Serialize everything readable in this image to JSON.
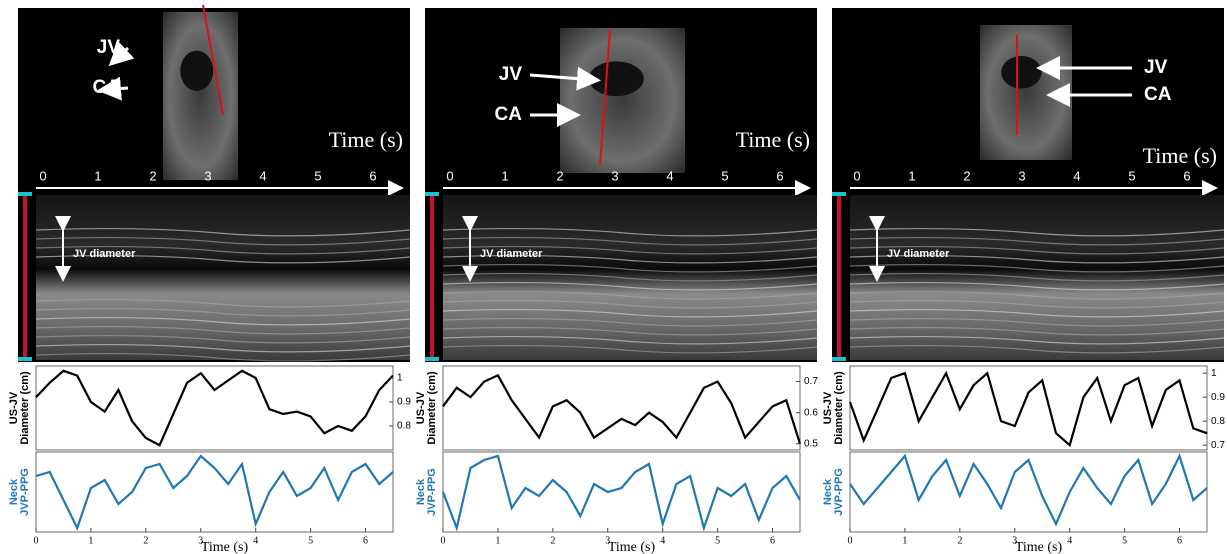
{
  "panels": [
    {
      "labels": [
        "JV",
        "CA"
      ],
      "time_label": "Time (s)",
      "time_ticks": [
        "0",
        "1",
        "2",
        "3",
        "4",
        "5",
        "6"
      ],
      "annotation": "JV diameter"
    },
    {
      "labels": [
        "JV",
        "CA"
      ],
      "time_label": "Time (s)",
      "time_ticks": [
        "0",
        "1",
        "2",
        "3",
        "4",
        "5",
        "6"
      ],
      "annotation": "JV diameter"
    },
    {
      "labels": [
        "JV",
        "CA"
      ],
      "time_label": "Time (s)",
      "time_ticks": [
        "0",
        "1",
        "2",
        "3",
        "4",
        "5",
        "6"
      ],
      "annotation": "JV diameter"
    }
  ],
  "chart_data": [
    {
      "type": "line",
      "ylabel": [
        "US-JV",
        "Diameter (cm)"
      ],
      "color": "#000000",
      "x": [
        0,
        0.25,
        0.5,
        0.75,
        1,
        1.25,
        1.5,
        1.75,
        2,
        2.25,
        2.5,
        2.75,
        3,
        3.25,
        3.5,
        3.75,
        4,
        4.25,
        4.5,
        4.75,
        5,
        5.25,
        5.5,
        5.75,
        6,
        6.25,
        6.5
      ],
      "values": [
        0.92,
        0.98,
        1.03,
        1.01,
        0.9,
        0.86,
        0.95,
        0.82,
        0.75,
        0.72,
        0.85,
        0.98,
        1.02,
        0.95,
        0.99,
        1.03,
        1.0,
        0.87,
        0.85,
        0.86,
        0.84,
        0.77,
        0.8,
        0.78,
        0.84,
        0.95,
        1.01
      ],
      "xlim": [
        0,
        6.5
      ],
      "ylim": [
        0.7,
        1.05
      ],
      "yticks": [
        0.8,
        0.9,
        1
      ]
    },
    {
      "type": "line",
      "ylabel": [
        "Neck",
        "JVP-PPG"
      ],
      "color": "#1f77b4",
      "x": [
        0,
        0.25,
        0.5,
        0.75,
        1,
        1.25,
        1.5,
        1.75,
        2,
        2.25,
        2.5,
        2.75,
        3,
        3.25,
        3.5,
        3.75,
        4,
        4.25,
        4.5,
        4.75,
        5,
        5.25,
        5.5,
        5.75,
        6,
        6.25,
        6.5
      ],
      "values": [
        0.7,
        0.75,
        0.4,
        0.05,
        0.55,
        0.65,
        0.35,
        0.5,
        0.8,
        0.85,
        0.55,
        0.7,
        0.95,
        0.8,
        0.6,
        0.85,
        0.1,
        0.5,
        0.75,
        0.45,
        0.55,
        0.8,
        0.4,
        0.75,
        0.85,
        0.6,
        0.75
      ],
      "xlim": [
        0,
        6.5
      ],
      "ylim": [
        0,
        1
      ],
      "xticks": [
        0,
        1,
        2,
        3,
        4,
        5,
        6
      ],
      "xlabel": "Time (s)"
    },
    {
      "type": "line",
      "ylabel": [
        "US-JV",
        "Diameter (cm)"
      ],
      "color": "#000000",
      "x": [
        0,
        0.25,
        0.5,
        0.75,
        1,
        1.25,
        1.5,
        1.75,
        2,
        2.25,
        2.5,
        2.75,
        3,
        3.25,
        3.5,
        3.75,
        4,
        4.25,
        4.5,
        4.75,
        5,
        5.25,
        5.5,
        5.75,
        6,
        6.25,
        6.5
      ],
      "values": [
        0.62,
        0.68,
        0.65,
        0.7,
        0.72,
        0.64,
        0.58,
        0.52,
        0.62,
        0.64,
        0.6,
        0.52,
        0.55,
        0.58,
        0.56,
        0.6,
        0.57,
        0.52,
        0.6,
        0.68,
        0.7,
        0.63,
        0.52,
        0.57,
        0.62,
        0.64,
        0.5
      ],
      "xlim": [
        0,
        6.5
      ],
      "ylim": [
        0.48,
        0.75
      ],
      "yticks": [
        0.5,
        0.6,
        0.7
      ]
    },
    {
      "type": "line",
      "ylabel": [
        "Neck",
        "JVP-PPG"
      ],
      "color": "#1f77b4",
      "x": [
        0,
        0.25,
        0.5,
        0.75,
        1,
        1.25,
        1.5,
        1.75,
        2,
        2.25,
        2.5,
        2.75,
        3,
        3.25,
        3.5,
        3.75,
        4,
        4.25,
        4.5,
        4.75,
        5,
        5.25,
        5.5,
        5.75,
        6,
        6.25,
        6.5
      ],
      "values": [
        0.5,
        0.05,
        0.8,
        0.9,
        0.95,
        0.3,
        0.55,
        0.45,
        0.65,
        0.5,
        0.2,
        0.6,
        0.5,
        0.55,
        0.75,
        0.85,
        0.1,
        0.6,
        0.7,
        0.05,
        0.55,
        0.45,
        0.6,
        0.15,
        0.55,
        0.7,
        0.4
      ],
      "xlim": [
        0,
        6.5
      ],
      "ylim": [
        0,
        1
      ],
      "xticks": [
        0,
        1,
        2,
        3,
        4,
        5,
        6
      ],
      "xlabel": "Time (s)"
    },
    {
      "type": "line",
      "ylabel": [
        "US-JV",
        "Diameter (cm)"
      ],
      "color": "#000000",
      "x": [
        0,
        0.25,
        0.5,
        0.75,
        1,
        1.25,
        1.5,
        1.75,
        2,
        2.25,
        2.5,
        2.75,
        3,
        3.25,
        3.5,
        3.75,
        4,
        4.25,
        4.5,
        4.75,
        5,
        5.25,
        5.5,
        5.75,
        6,
        6.25,
        6.5
      ],
      "values": [
        0.88,
        0.72,
        0.85,
        0.98,
        1.0,
        0.8,
        0.9,
        1.0,
        0.85,
        0.95,
        1.0,
        0.8,
        0.78,
        0.92,
        0.97,
        0.75,
        0.7,
        0.9,
        0.98,
        0.8,
        0.95,
        0.98,
        0.78,
        0.93,
        0.97,
        0.77,
        0.75
      ],
      "xlim": [
        0,
        6.5
      ],
      "ylim": [
        0.68,
        1.03
      ],
      "yticks": [
        0.7,
        0.8,
        0.9,
        1
      ]
    },
    {
      "type": "line",
      "ylabel": [
        "Neck",
        "JVP-PPG"
      ],
      "color": "#1f77b4",
      "x": [
        0,
        0.25,
        0.5,
        0.75,
        1,
        1.25,
        1.5,
        1.75,
        2,
        2.25,
        2.5,
        2.75,
        3,
        3.25,
        3.5,
        3.75,
        4,
        4.25,
        4.5,
        4.75,
        5,
        5.25,
        5.5,
        5.75,
        6,
        6.25,
        6.5
      ],
      "values": [
        0.6,
        0.35,
        0.55,
        0.75,
        0.95,
        0.4,
        0.7,
        0.9,
        0.45,
        0.85,
        0.6,
        0.3,
        0.75,
        0.9,
        0.45,
        0.1,
        0.5,
        0.8,
        0.55,
        0.35,
        0.7,
        0.9,
        0.35,
        0.6,
        0.95,
        0.4,
        0.55
      ],
      "xlim": [
        0,
        6.5
      ],
      "ylim": [
        0,
        1
      ],
      "xticks": [
        0,
        1,
        2,
        3,
        4,
        5,
        6
      ],
      "xlabel": "Time (s)"
    }
  ]
}
